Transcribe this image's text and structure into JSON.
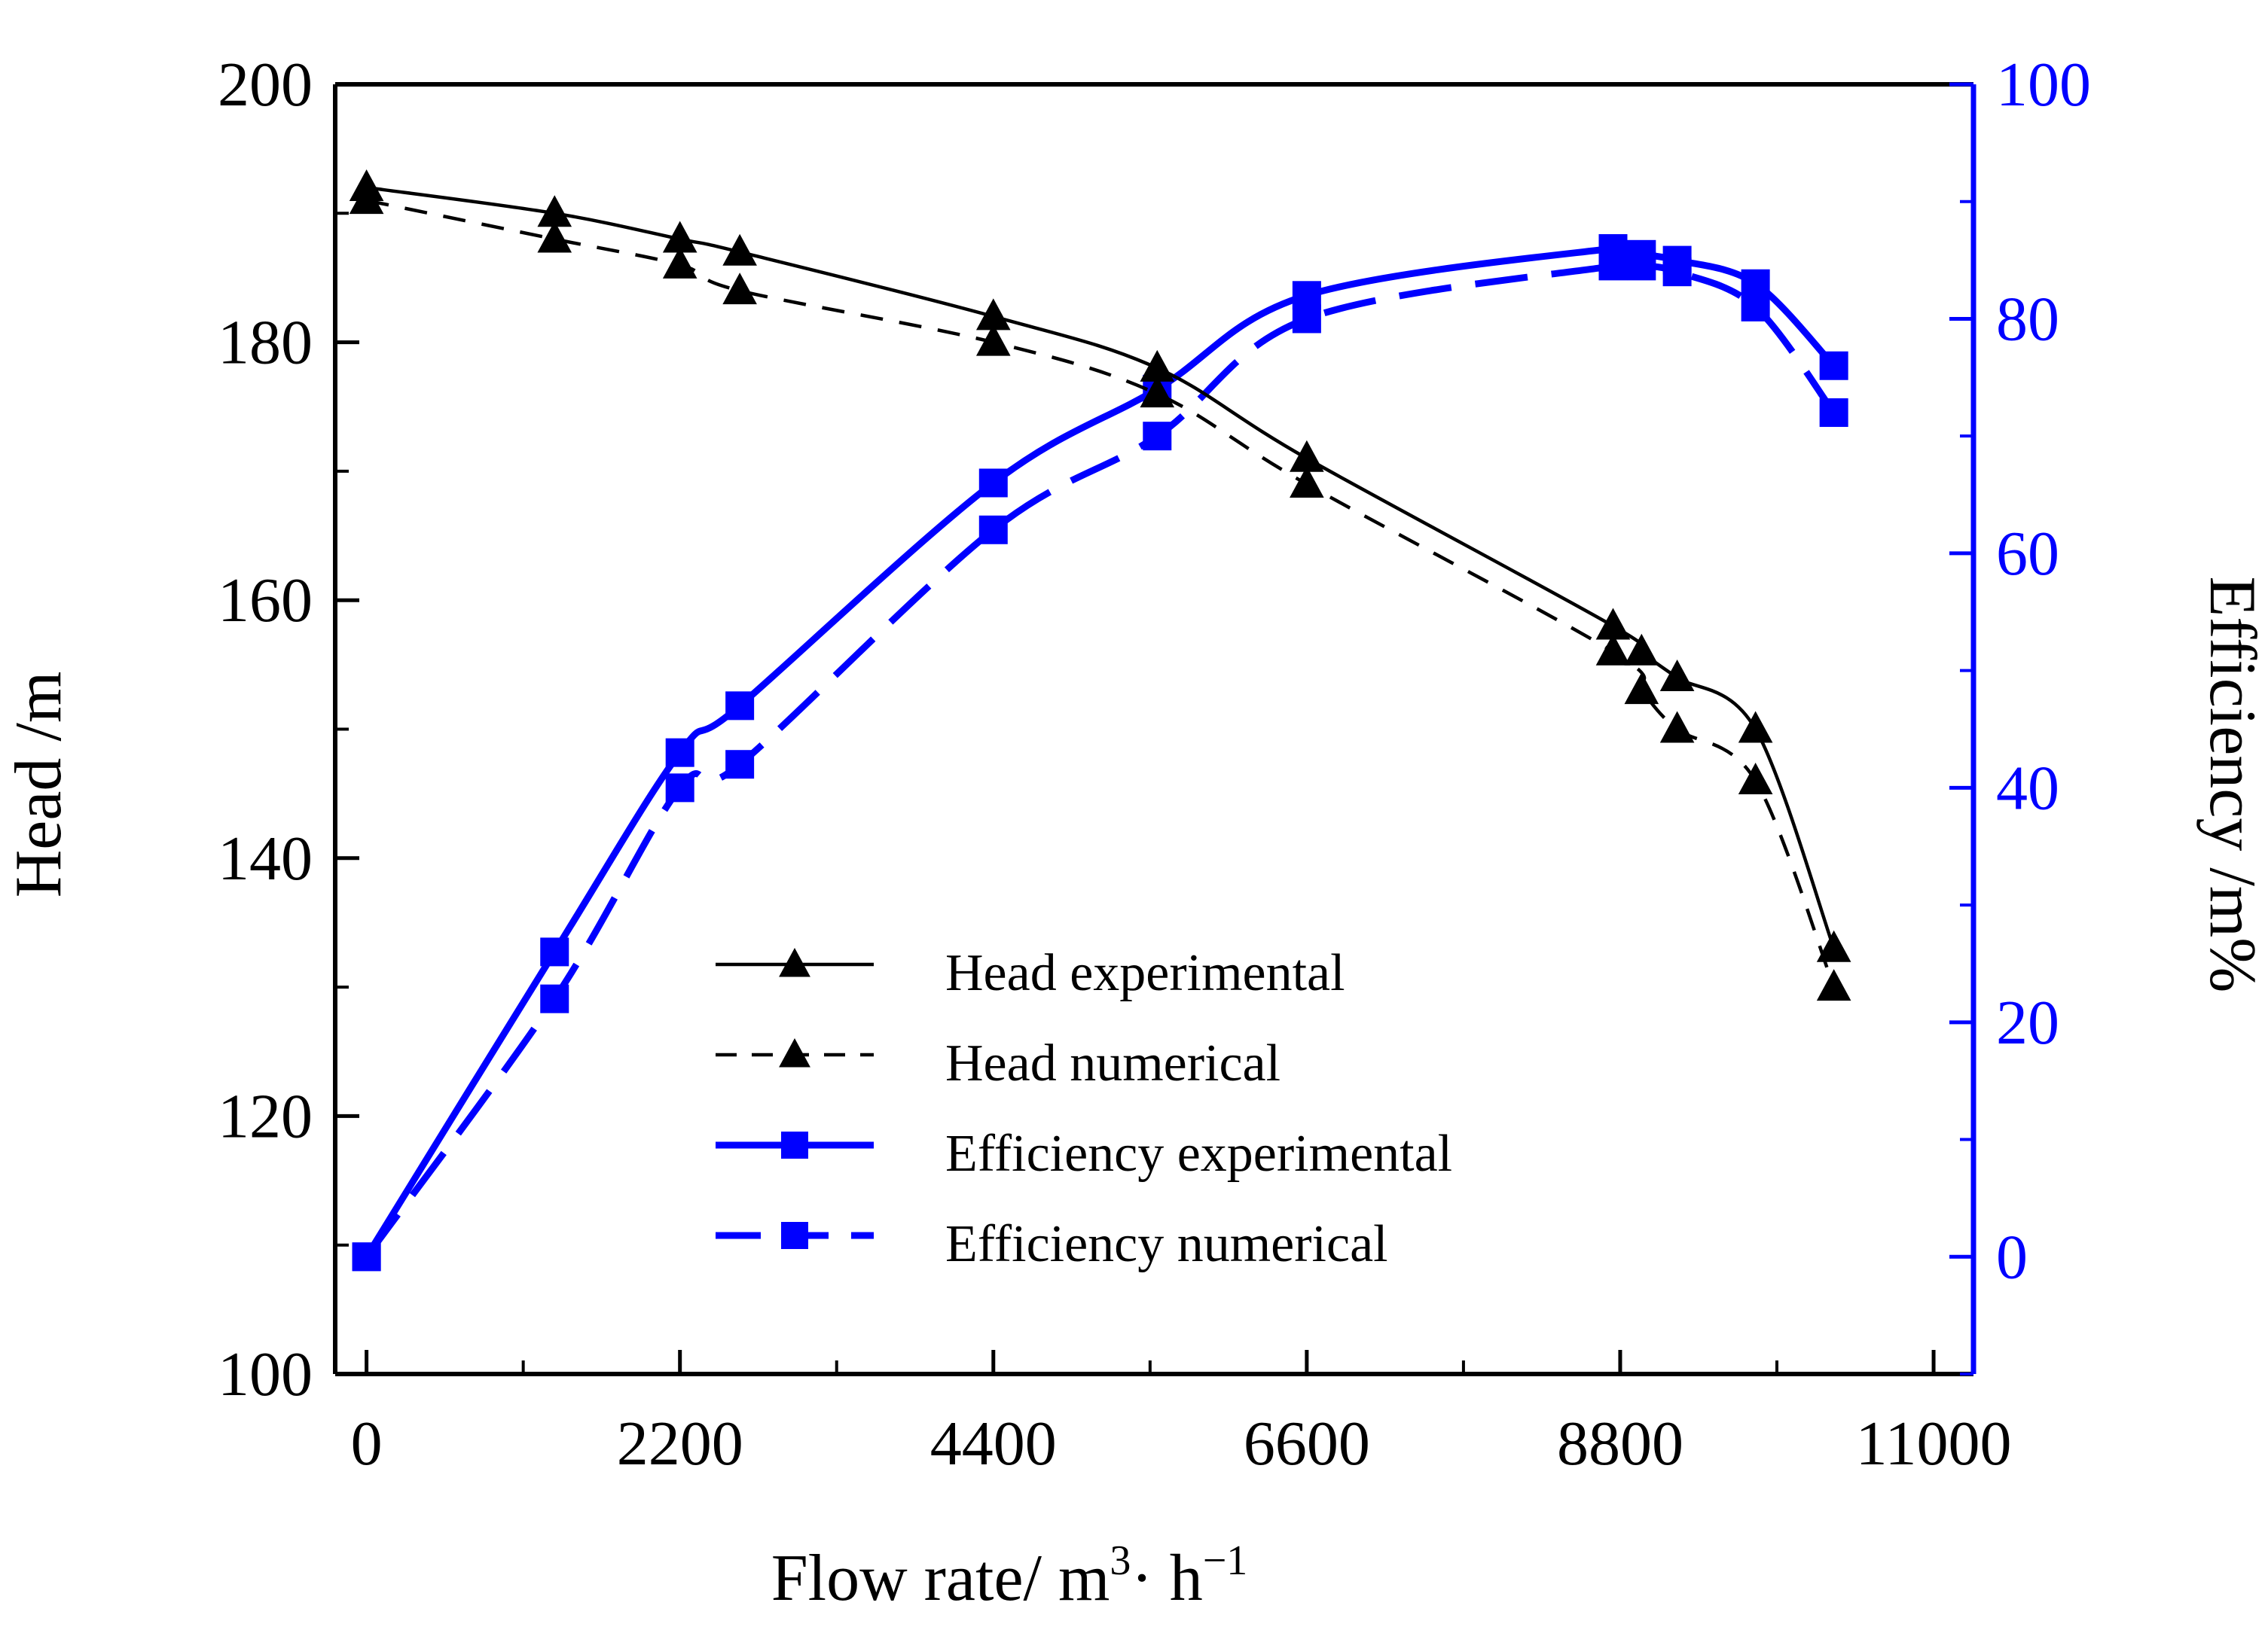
{
  "chart_data": {
    "type": "line",
    "title": "",
    "xlabel": "Flow rate/ m",
    "xlabel_unit": {
      "sup1": "3",
      "mid": "· h",
      "sup2": "−1"
    },
    "ylabel_left": "Head /m",
    "ylabel_right": "Efficiency /m%",
    "xlim": [
      -220,
      11280
    ],
    "ylim_left": [
      100,
      200
    ],
    "ylim_right": [
      -10,
      100
    ],
    "x_ticks": [
      0,
      2200,
      4400,
      6600,
      8800,
      11000
    ],
    "x_tick_labels": [
      "0",
      "2200",
      "4400",
      "6600",
      "8800",
      "11000"
    ],
    "y_left_ticks": [
      100,
      120,
      140,
      160,
      180,
      200
    ],
    "y_left_tick_labels": [
      "100",
      "120",
      "140",
      "160",
      "180",
      "200"
    ],
    "y_right_ticks": [
      0,
      20,
      40,
      60,
      80,
      100
    ],
    "y_right_tick_labels": [
      "0",
      "20",
      "40",
      "60",
      "80",
      "100"
    ],
    "grid": false,
    "legend_position": "center-bottom",
    "colors": {
      "head": "#000000",
      "efficiency": "#0000ff",
      "right_axis": "#0000ff"
    },
    "series": [
      {
        "name": "Head experimental",
        "axis": "left",
        "style": "solid",
        "marker": "triangle",
        "color": "#000000",
        "x": [
          0,
          1320,
          2200,
          2620,
          4400,
          5550,
          6600,
          8750,
          8950,
          9200,
          9750,
          10300
        ],
        "values": [
          192,
          190,
          188,
          187,
          182,
          178,
          171,
          158,
          156,
          154,
          150,
          133
        ]
      },
      {
        "name": "Head numerical",
        "axis": "left",
        "style": "dashed",
        "marker": "triangle",
        "color": "#000000",
        "x": [
          0,
          1320,
          2200,
          2620,
          4400,
          5550,
          6600,
          8750,
          8950,
          9200,
          9750,
          10300
        ],
        "values": [
          191,
          188,
          186,
          184,
          180,
          176,
          169,
          156,
          153,
          150,
          146,
          130
        ]
      },
      {
        "name": "Efficiency experimental",
        "axis": "right",
        "style": "solid",
        "marker": "square",
        "color": "#0000ff",
        "x": [
          0,
          1320,
          2200,
          2620,
          4400,
          5550,
          6600,
          8750,
          8950,
          9200,
          9750,
          10300
        ],
        "values": [
          0,
          26,
          43,
          47,
          66,
          74,
          82,
          86,
          85.5,
          85,
          83,
          76
        ]
      },
      {
        "name": "Efficiency numerical",
        "axis": "right",
        "style": "dashed",
        "marker": "square",
        "color": "#0000ff",
        "x": [
          0,
          1320,
          2200,
          2620,
          4400,
          5550,
          6600,
          8750,
          8950,
          9200,
          9750,
          10300
        ],
        "values": [
          0,
          22,
          40,
          42,
          62,
          70,
          80,
          84.5,
          84.5,
          84,
          81,
          72
        ]
      }
    ]
  }
}
